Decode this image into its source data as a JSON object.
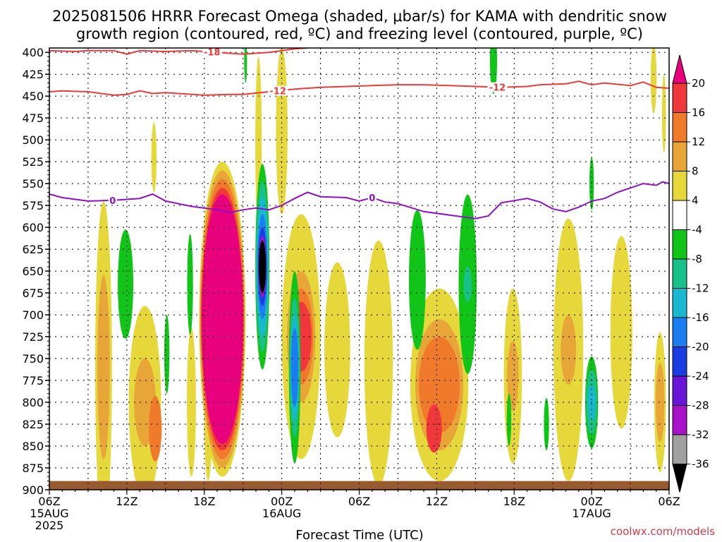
{
  "chart_data": {
    "type": "heatmap",
    "title": "2025081506 HRRR Forecast Omega (shaded, μbar/s) for KAMA with dendritic snow",
    "subtitle": "growth region (contoured, red, ºC) and freezing level (contoured, purple, ºC)",
    "xlabel": "Forecast Time (UTC)",
    "ylabel": "",
    "credit": "coolwx.com/models",
    "x_range_hours": [
      0,
      48
    ],
    "y_range_mb": [
      900,
      395
    ],
    "y_ticks": [
      400,
      425,
      450,
      475,
      500,
      525,
      550,
      575,
      600,
      625,
      650,
      675,
      700,
      725,
      750,
      775,
      800,
      825,
      850,
      875,
      900
    ],
    "x_ticks": [
      {
        "h": 0,
        "lines": [
          "06Z",
          "15AUG",
          "2025"
        ]
      },
      {
        "h": 6,
        "lines": [
          "12Z"
        ]
      },
      {
        "h": 12,
        "lines": [
          "18Z"
        ]
      },
      {
        "h": 18,
        "lines": [
          "00Z",
          "16AUG"
        ]
      },
      {
        "h": 24,
        "lines": [
          "06Z"
        ]
      },
      {
        "h": 30,
        "lines": [
          "12Z"
        ]
      },
      {
        "h": 36,
        "lines": [
          "18Z"
        ]
      },
      {
        "h": 42,
        "lines": [
          "00Z",
          "17AUG"
        ]
      },
      {
        "h": 48,
        "lines": [
          "06Z"
        ]
      }
    ],
    "grid": true,
    "colorbar": {
      "ticks": [
        20,
        16,
        12,
        8,
        4,
        -4,
        -8,
        -12,
        -16,
        -20,
        -24,
        -28,
        -32,
        -36
      ],
      "bins": [
        {
          "lo": 20,
          "hi": 24,
          "color": "#e8007c"
        },
        {
          "lo": 16,
          "hi": 20,
          "color": "#f0383c"
        },
        {
          "lo": 12,
          "hi": 16,
          "color": "#ee7a2a"
        },
        {
          "lo": 8,
          "hi": 12,
          "color": "#e8a638"
        },
        {
          "lo": 4,
          "hi": 8,
          "color": "#e6d83a"
        },
        {
          "lo": -4,
          "hi": 4,
          "color": "#ffffff"
        },
        {
          "lo": -8,
          "hi": -4,
          "color": "#10c418"
        },
        {
          "lo": -12,
          "hi": -8,
          "color": "#18c08a"
        },
        {
          "lo": -16,
          "hi": -12,
          "color": "#18b8d0"
        },
        {
          "lo": -20,
          "hi": -16,
          "color": "#1a7ef0"
        },
        {
          "lo": -24,
          "hi": -20,
          "color": "#1a3ce0"
        },
        {
          "lo": -28,
          "hi": -24,
          "color": "#6a14d8"
        },
        {
          "lo": -32,
          "hi": -28,
          "color": "#a812c8"
        },
        {
          "lo": -36,
          "hi": -32,
          "color": "#a0a0a0"
        },
        {
          "lo": -40,
          "hi": -36,
          "color": "#000000"
        }
      ]
    },
    "omega_blobs": [
      {
        "h": 4.2,
        "p": 760,
        "w": 1.3,
        "levels": [
          [
            380,
            4
          ],
          [
            210,
            8
          ]
        ]
      },
      {
        "h": 7.4,
        "p": 800,
        "w": 2.5,
        "levels": [
          [
            220,
            4
          ],
          [
            100,
            8
          ]
        ]
      },
      {
        "h": 8.2,
        "p": 830,
        "w": 1.0,
        "levels": [
          [
            75,
            12
          ]
        ]
      },
      {
        "h": 8.1,
        "p": 520,
        "w": 0.4,
        "levels": [
          [
            80,
            4
          ]
        ]
      },
      {
        "h": 11.0,
        "p": 800,
        "w": 0.7,
        "levels": [
          [
            170,
            4
          ]
        ]
      },
      {
        "h": 12.3,
        "p": 820,
        "w": 0.6,
        "levels": [
          [
            140,
            4
          ]
        ]
      },
      {
        "h": 13.4,
        "p": 705,
        "w": 3.6,
        "levels": [
          [
            360,
            4
          ],
          [
            340,
            8
          ],
          [
            320,
            12
          ],
          [
            300,
            16
          ],
          [
            285,
            20
          ]
        ]
      },
      {
        "h": 16.2,
        "p": 505,
        "w": 0.5,
        "levels": [
          [
            200,
            4
          ]
        ]
      },
      {
        "h": 18.0,
        "p": 490,
        "w": 0.9,
        "levels": [
          [
            190,
            4
          ]
        ]
      },
      {
        "h": 19.5,
        "p": 725,
        "w": 3.0,
        "levels": [
          [
            280,
            4
          ],
          [
            150,
            8
          ],
          [
            110,
            12
          ],
          [
            80,
            16
          ]
        ]
      },
      {
        "h": 22.3,
        "p": 740,
        "w": 2.0,
        "levels": [
          [
            200,
            4
          ]
        ]
      },
      {
        "h": 25.5,
        "p": 755,
        "w": 2.2,
        "levels": [
          [
            280,
            4
          ]
        ]
      },
      {
        "h": 30.2,
        "p": 780,
        "w": 4.5,
        "levels": [
          [
            220,
            4
          ],
          [
            150,
            8
          ],
          [
            110,
            12
          ]
        ]
      },
      {
        "h": 29.8,
        "p": 830,
        "w": 1.2,
        "levels": [
          [
            55,
            16
          ]
        ]
      },
      {
        "h": 35.9,
        "p": 770,
        "w": 1.4,
        "levels": [
          [
            200,
            4
          ],
          [
            80,
            8
          ]
        ]
      },
      {
        "h": 40.2,
        "p": 740,
        "w": 2.3,
        "levels": [
          [
            300,
            4
          ],
          [
            80,
            8
          ]
        ]
      },
      {
        "h": 44.3,
        "p": 720,
        "w": 1.7,
        "levels": [
          [
            220,
            4
          ]
        ]
      },
      {
        "h": 47.3,
        "p": 800,
        "w": 0.9,
        "levels": [
          [
            160,
            4
          ],
          [
            90,
            8
          ]
        ]
      },
      {
        "h": 46.8,
        "p": 430,
        "w": 0.45,
        "levels": [
          [
            80,
            4
          ]
        ]
      },
      {
        "h": 47.6,
        "p": 470,
        "w": 0.3,
        "levels": [
          [
            90,
            4
          ]
        ]
      },
      {
        "h": 8.2,
        "p": 400,
        "w": 0.0,
        "levels": []
      },
      {
        "h": 5.9,
        "p": 665,
        "w": 1.2,
        "levels": [
          [
            125,
            -4
          ]
        ]
      },
      {
        "h": 10.9,
        "p": 665,
        "w": 0.45,
        "levels": [
          [
            115,
            -4
          ]
        ]
      },
      {
        "h": 9.1,
        "p": 745,
        "w": 0.4,
        "levels": [
          [
            90,
            -4
          ]
        ]
      },
      {
        "h": 16.5,
        "p": 645,
        "w": 1.1,
        "levels": [
          [
            235,
            -4
          ],
          [
            195,
            -8
          ],
          [
            160,
            -12
          ],
          [
            120,
            -16
          ],
          [
            90,
            -20
          ],
          [
            70,
            -28
          ],
          [
            60,
            -40
          ]
        ]
      },
      {
        "h": 19.0,
        "p": 760,
        "w": 0.9,
        "levels": [
          [
            220,
            -4
          ],
          [
            160,
            -8
          ],
          [
            120,
            -12
          ],
          [
            90,
            -16
          ]
        ]
      },
      {
        "h": 28.5,
        "p": 660,
        "w": 1.3,
        "levels": [
          [
            160,
            -4
          ]
        ]
      },
      {
        "h": 32.4,
        "p": 665,
        "w": 1.4,
        "levels": [
          [
            205,
            -4
          ],
          [
            40,
            -8
          ]
        ]
      },
      {
        "h": 34.4,
        "p": 410,
        "w": 0.55,
        "levels": [
          [
            75,
            -4
          ]
        ]
      },
      {
        "h": 35.6,
        "p": 820,
        "w": 0.35,
        "levels": [
          [
            60,
            -4
          ]
        ]
      },
      {
        "h": 38.5,
        "p": 825,
        "w": 0.4,
        "levels": [
          [
            60,
            -4
          ]
        ]
      },
      {
        "h": 42.0,
        "p": 800,
        "w": 1.0,
        "levels": [
          [
            105,
            -4
          ],
          [
            75,
            -8
          ],
          [
            40,
            -12
          ]
        ]
      },
      {
        "h": 42.0,
        "p": 550,
        "w": 0.35,
        "levels": [
          [
            60,
            -4
          ]
        ]
      },
      {
        "h": 15.2,
        "p": 410,
        "w": 0.2,
        "levels": [
          [
            50,
            -4
          ]
        ]
      }
    ],
    "red_contours": [
      {
        "label": "-18",
        "label_h": 12.6,
        "points": [
          [
            0,
            398
          ],
          [
            2,
            399
          ],
          [
            3,
            398
          ],
          [
            5,
            398
          ],
          [
            6,
            402
          ],
          [
            7,
            398
          ],
          [
            9,
            399
          ],
          [
            11,
            398
          ],
          [
            13,
            400
          ],
          [
            15,
            402
          ],
          [
            17,
            400
          ],
          [
            18,
            398
          ],
          [
            19,
            396
          ],
          [
            20,
            395
          ]
        ]
      },
      {
        "label": "-12",
        "label_h": 17.7,
        "points": [
          [
            0,
            445
          ],
          [
            1,
            444
          ],
          [
            3,
            445
          ],
          [
            5,
            449
          ],
          [
            6,
            448
          ],
          [
            7,
            444
          ],
          [
            8,
            447
          ],
          [
            9,
            446
          ],
          [
            10,
            447
          ],
          [
            12,
            449
          ],
          [
            14,
            448
          ],
          [
            15,
            448
          ],
          [
            17,
            445
          ],
          [
            19,
            442
          ],
          [
            21,
            440
          ],
          [
            23,
            439
          ],
          [
            25,
            438
          ],
          [
            27,
            437
          ],
          [
            29,
            437
          ],
          [
            31,
            438
          ],
          [
            33,
            439
          ],
          [
            35,
            440
          ],
          [
            37,
            439
          ],
          [
            38,
            437
          ],
          [
            40,
            436
          ],
          [
            41,
            433
          ],
          [
            42,
            437
          ],
          [
            43,
            435
          ],
          [
            45,
            438
          ],
          [
            46,
            434
          ],
          [
            47,
            440
          ],
          [
            48,
            441
          ]
        ]
      },
      {
        "label": "-12",
        "label_h": 34.7,
        "points": []
      }
    ],
    "purple_contour": {
      "label": "0",
      "label_h": 4.9,
      "label2_h": 25.0,
      "points": [
        [
          0,
          562
        ],
        [
          1,
          566
        ],
        [
          3,
          570
        ],
        [
          5,
          569
        ],
        [
          7,
          567
        ],
        [
          8,
          562
        ],
        [
          9,
          570
        ],
        [
          11,
          576
        ],
        [
          13,
          580
        ],
        [
          14,
          583
        ],
        [
          15,
          580
        ],
        [
          16,
          578
        ],
        [
          17,
          580
        ],
        [
          18,
          575
        ],
        [
          19,
          567
        ],
        [
          20,
          560
        ],
        [
          21,
          565
        ],
        [
          23,
          566
        ],
        [
          24,
          570
        ],
        [
          25,
          566
        ],
        [
          26,
          571
        ],
        [
          27,
          573
        ],
        [
          29,
          582
        ],
        [
          31,
          586
        ],
        [
          32,
          588
        ],
        [
          33,
          590
        ],
        [
          34,
          587
        ],
        [
          35,
          572
        ],
        [
          37,
          567
        ],
        [
          38,
          571
        ],
        [
          39,
          579
        ],
        [
          40,
          582
        ],
        [
          41,
          577
        ],
        [
          42,
          570
        ],
        [
          43,
          567
        ],
        [
          44,
          560
        ],
        [
          45,
          555
        ],
        [
          46,
          550
        ],
        [
          47,
          552
        ],
        [
          47.5,
          548
        ],
        [
          48,
          550
        ]
      ]
    },
    "ground": {
      "p_top": 890,
      "color": "#9a5a30"
    }
  }
}
